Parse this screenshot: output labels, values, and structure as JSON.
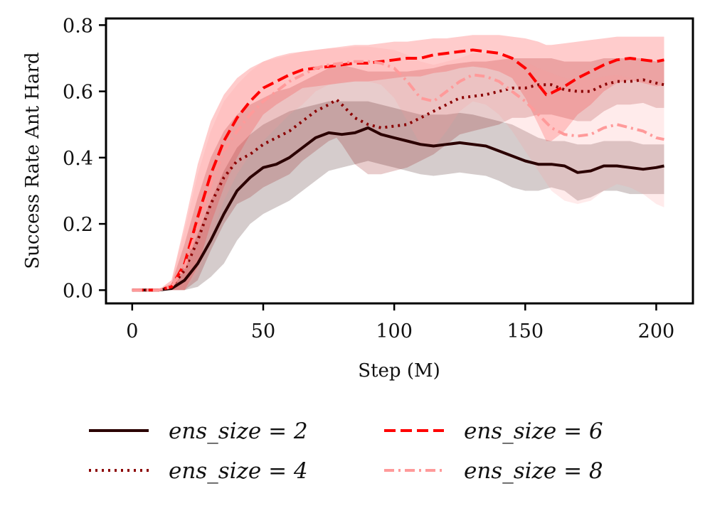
{
  "chart_data": {
    "type": "line",
    "xlabel": "Step (M)",
    "ylabel": "Success Rate Ant Hard",
    "xlim": [
      -10,
      214
    ],
    "ylim": [
      -0.04,
      0.82
    ],
    "xticks": [
      "0",
      "50",
      "100",
      "150",
      "200"
    ],
    "xtick_values": [
      0,
      50,
      100,
      150,
      200
    ],
    "yticks": [
      "0.0",
      "0.2",
      "0.4",
      "0.6",
      "0.8"
    ],
    "ytick_values": [
      0.0,
      0.2,
      0.4,
      0.6,
      0.8
    ],
    "grid": false,
    "legend_position": "bottom",
    "series": [
      {
        "name": "ens_size = 2",
        "legend_label": "ens_size = 2",
        "color": "#2b0000",
        "style": "solid",
        "x": [
          0,
          10,
          15,
          20,
          25,
          30,
          35,
          40,
          45,
          50,
          55,
          60,
          65,
          70,
          75,
          80,
          85,
          90,
          95,
          100,
          105,
          110,
          115,
          120,
          125,
          130,
          135,
          140,
          145,
          150,
          155,
          160,
          165,
          170,
          175,
          180,
          185,
          190,
          195,
          200,
          203
        ],
        "values": [
          0.0,
          0.0,
          0.005,
          0.03,
          0.08,
          0.15,
          0.23,
          0.3,
          0.34,
          0.37,
          0.38,
          0.4,
          0.43,
          0.46,
          0.475,
          0.47,
          0.475,
          0.49,
          0.47,
          0.46,
          0.45,
          0.44,
          0.435,
          0.44,
          0.445,
          0.44,
          0.435,
          0.42,
          0.405,
          0.39,
          0.38,
          0.38,
          0.375,
          0.355,
          0.36,
          0.375,
          0.375,
          0.37,
          0.365,
          0.37,
          0.375
        ],
        "upper": [
          0.0,
          0.0,
          0.01,
          0.08,
          0.17,
          0.27,
          0.36,
          0.43,
          0.47,
          0.5,
          0.52,
          0.54,
          0.55,
          0.56,
          0.57,
          0.57,
          0.57,
          0.57,
          0.56,
          0.55,
          0.54,
          0.53,
          0.53,
          0.53,
          0.535,
          0.53,
          0.52,
          0.51,
          0.5,
          0.48,
          0.46,
          0.45,
          0.45,
          0.44,
          0.44,
          0.45,
          0.45,
          0.45,
          0.44,
          0.44,
          0.44
        ],
        "lower": [
          0.0,
          0.0,
          0.0,
          0.0,
          0.01,
          0.04,
          0.08,
          0.15,
          0.2,
          0.23,
          0.25,
          0.27,
          0.3,
          0.33,
          0.36,
          0.37,
          0.38,
          0.39,
          0.38,
          0.37,
          0.36,
          0.35,
          0.345,
          0.35,
          0.355,
          0.35,
          0.345,
          0.33,
          0.31,
          0.3,
          0.3,
          0.31,
          0.3,
          0.27,
          0.28,
          0.3,
          0.3,
          0.29,
          0.29,
          0.29,
          0.29
        ]
      },
      {
        "name": "ens_size = 4",
        "legend_label": "ens_size = 4",
        "color": "#8b0000",
        "style": "dotted",
        "x": [
          0,
          10,
          15,
          20,
          25,
          30,
          35,
          40,
          45,
          50,
          55,
          60,
          65,
          70,
          75,
          78,
          80,
          85,
          90,
          95,
          100,
          105,
          110,
          115,
          120,
          125,
          130,
          135,
          140,
          145,
          150,
          155,
          160,
          165,
          170,
          175,
          180,
          185,
          190,
          195,
          200,
          203
        ],
        "values": [
          0.0,
          0.0,
          0.01,
          0.06,
          0.15,
          0.26,
          0.34,
          0.39,
          0.41,
          0.44,
          0.46,
          0.48,
          0.51,
          0.54,
          0.56,
          0.575,
          0.56,
          0.52,
          0.5,
          0.49,
          0.495,
          0.5,
          0.52,
          0.54,
          0.56,
          0.58,
          0.585,
          0.59,
          0.6,
          0.61,
          0.61,
          0.62,
          0.62,
          0.605,
          0.6,
          0.6,
          0.62,
          0.63,
          0.63,
          0.635,
          0.625,
          0.62
        ],
        "upper": [
          0.0,
          0.0,
          0.02,
          0.14,
          0.28,
          0.4,
          0.48,
          0.53,
          0.56,
          0.58,
          0.6,
          0.61,
          0.63,
          0.65,
          0.67,
          0.68,
          0.68,
          0.67,
          0.66,
          0.66,
          0.66,
          0.66,
          0.665,
          0.67,
          0.68,
          0.685,
          0.69,
          0.69,
          0.695,
          0.7,
          0.7,
          0.7,
          0.7,
          0.69,
          0.69,
          0.69,
          0.7,
          0.7,
          0.7,
          0.7,
          0.69,
          0.69
        ],
        "lower": [
          0.0,
          0.0,
          0.0,
          0.0,
          0.03,
          0.12,
          0.2,
          0.26,
          0.28,
          0.31,
          0.33,
          0.35,
          0.39,
          0.42,
          0.45,
          0.46,
          0.44,
          0.38,
          0.35,
          0.35,
          0.36,
          0.37,
          0.39,
          0.41,
          0.44,
          0.47,
          0.48,
          0.49,
          0.5,
          0.52,
          0.52,
          0.53,
          0.53,
          0.52,
          0.51,
          0.51,
          0.54,
          0.56,
          0.56,
          0.565,
          0.55,
          0.55
        ]
      },
      {
        "name": "ens_size = 6",
        "legend_label": "ens_size = 6",
        "color": "#ff0000",
        "style": "dashed",
        "x": [
          0,
          10,
          15,
          20,
          25,
          30,
          35,
          40,
          45,
          50,
          55,
          60,
          65,
          70,
          75,
          80,
          85,
          90,
          95,
          100,
          105,
          110,
          115,
          120,
          125,
          130,
          135,
          140,
          145,
          150,
          155,
          158,
          160,
          165,
          170,
          175,
          180,
          185,
          190,
          195,
          200,
          203
        ],
        "values": [
          0.0,
          0.0,
          0.01,
          0.08,
          0.22,
          0.35,
          0.45,
          0.52,
          0.57,
          0.61,
          0.63,
          0.65,
          0.665,
          0.67,
          0.675,
          0.68,
          0.685,
          0.685,
          0.69,
          0.695,
          0.7,
          0.7,
          0.71,
          0.715,
          0.72,
          0.725,
          0.72,
          0.715,
          0.7,
          0.67,
          0.62,
          0.59,
          0.595,
          0.615,
          0.64,
          0.66,
          0.68,
          0.695,
          0.7,
          0.695,
          0.69,
          0.695
        ],
        "upper": [
          0.0,
          0.0,
          0.03,
          0.2,
          0.38,
          0.51,
          0.59,
          0.64,
          0.67,
          0.69,
          0.705,
          0.715,
          0.72,
          0.725,
          0.73,
          0.735,
          0.74,
          0.74,
          0.745,
          0.75,
          0.75,
          0.755,
          0.76,
          0.76,
          0.765,
          0.77,
          0.77,
          0.77,
          0.765,
          0.76,
          0.75,
          0.74,
          0.74,
          0.745,
          0.75,
          0.755,
          0.76,
          0.765,
          0.765,
          0.765,
          0.765,
          0.765
        ],
        "lower": [
          0.0,
          0.0,
          0.0,
          0.0,
          0.07,
          0.2,
          0.31,
          0.4,
          0.47,
          0.53,
          0.56,
          0.585,
          0.61,
          0.615,
          0.62,
          0.625,
          0.63,
          0.63,
          0.635,
          0.64,
          0.645,
          0.645,
          0.655,
          0.66,
          0.67,
          0.675,
          0.67,
          0.66,
          0.64,
          0.58,
          0.5,
          0.45,
          0.45,
          0.48,
          0.53,
          0.56,
          0.6,
          0.625,
          0.635,
          0.625,
          0.615,
          0.62
        ]
      },
      {
        "name": "ens_size = 8",
        "legend_label": "ens_size = 8",
        "color": "#ff9a9a",
        "style": "dashdot",
        "x": [
          0,
          10,
          15,
          20,
          25,
          30,
          35,
          40,
          45,
          50,
          55,
          60,
          65,
          70,
          75,
          80,
          85,
          90,
          95,
          100,
          105,
          110,
          115,
          120,
          125,
          130,
          135,
          140,
          145,
          150,
          155,
          160,
          165,
          170,
          175,
          180,
          185,
          190,
          195,
          200,
          203
        ],
        "values": [
          0.0,
          0.0,
          0.01,
          0.07,
          0.19,
          0.32,
          0.42,
          0.48,
          0.53,
          0.57,
          0.6,
          0.63,
          0.65,
          0.67,
          0.68,
          0.685,
          0.69,
          0.69,
          0.685,
          0.67,
          0.63,
          0.58,
          0.57,
          0.6,
          0.63,
          0.65,
          0.645,
          0.63,
          0.6,
          0.57,
          0.53,
          0.49,
          0.47,
          0.465,
          0.47,
          0.49,
          0.5,
          0.49,
          0.48,
          0.46,
          0.455
        ],
        "upper": [
          0.0,
          0.0,
          0.03,
          0.18,
          0.35,
          0.48,
          0.57,
          0.62,
          0.66,
          0.69,
          0.7,
          0.71,
          0.72,
          0.725,
          0.73,
          0.73,
          0.735,
          0.735,
          0.73,
          0.725,
          0.71,
          0.69,
          0.68,
          0.69,
          0.7,
          0.715,
          0.715,
          0.71,
          0.7,
          0.69,
          0.67,
          0.655,
          0.64,
          0.635,
          0.635,
          0.645,
          0.65,
          0.64,
          0.63,
          0.62,
          0.62
        ],
        "lower": [
          0.0,
          0.0,
          0.0,
          0.0,
          0.05,
          0.16,
          0.27,
          0.35,
          0.41,
          0.45,
          0.49,
          0.53,
          0.56,
          0.6,
          0.62,
          0.63,
          0.63,
          0.63,
          0.62,
          0.58,
          0.51,
          0.44,
          0.43,
          0.48,
          0.54,
          0.57,
          0.56,
          0.53,
          0.48,
          0.42,
          0.36,
          0.3,
          0.27,
          0.26,
          0.27,
          0.3,
          0.32,
          0.31,
          0.29,
          0.26,
          0.25
        ]
      }
    ]
  }
}
